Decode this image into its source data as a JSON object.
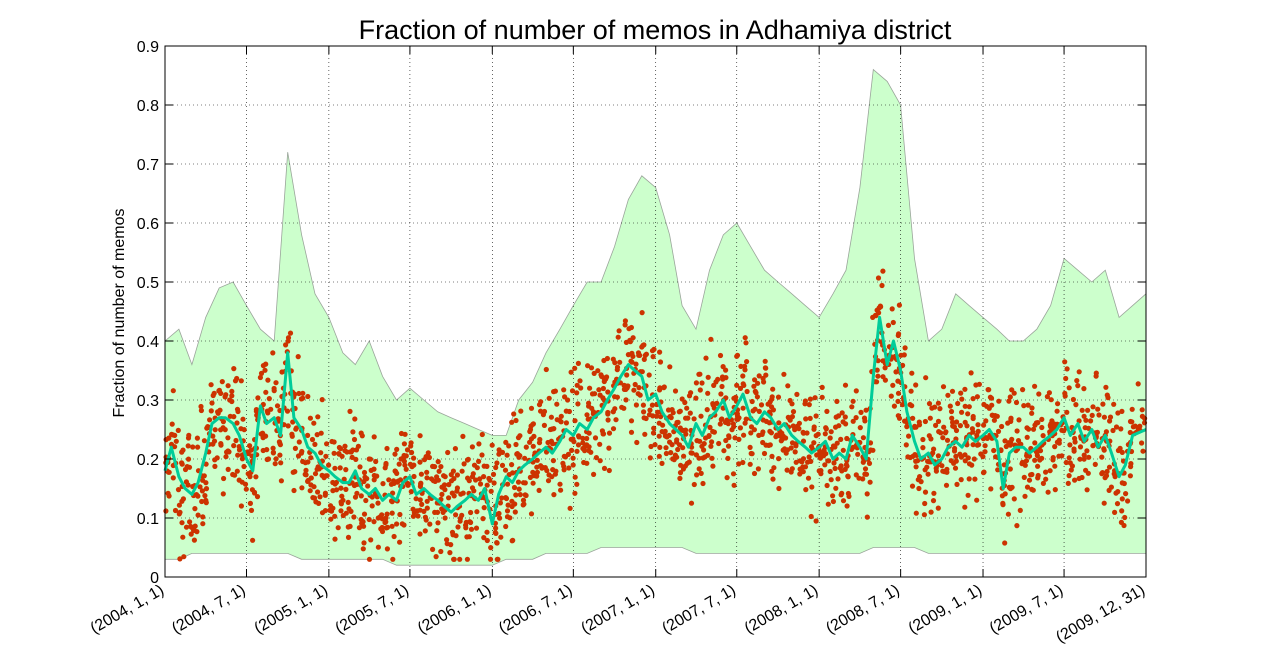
{
  "chart_data": {
    "type": "line",
    "title": "Fraction of number of memos in Adhamiya district",
    "xlabel": "",
    "ylabel": "Fraction of number of memos",
    "ylim": [
      0,
      0.9
    ],
    "xlim": [
      "2004-01-01",
      "2009-12-31"
    ],
    "yticks": [
      "0",
      "0.1",
      "0.2",
      "0.3",
      "0.4",
      "0.5",
      "0.6",
      "0.7",
      "0.8",
      "0.9"
    ],
    "xticks": [
      {
        "date": "2004-01-01",
        "label": "(2004, 1, 1)"
      },
      {
        "date": "2004-07-01",
        "label": "(2004, 7, 1)"
      },
      {
        "date": "2005-01-01",
        "label": "(2005, 1, 1)"
      },
      {
        "date": "2005-07-01",
        "label": "(2005, 7, 1)"
      },
      {
        "date": "2006-01-01",
        "label": "(2006, 1, 1)"
      },
      {
        "date": "2006-07-01",
        "label": "(2006, 7, 1)"
      },
      {
        "date": "2007-01-01",
        "label": "(2007, 1, 1)"
      },
      {
        "date": "2007-07-01",
        "label": "(2007, 7, 1)"
      },
      {
        "date": "2008-01-01",
        "label": "(2008, 1, 1)"
      },
      {
        "date": "2008-07-01",
        "label": "(2008, 7, 1)"
      },
      {
        "date": "2009-01-01",
        "label": "(2009, 1, 1)"
      },
      {
        "date": "2009-07-01",
        "label": "(2009, 7, 1)"
      },
      {
        "date": "2009-12-31",
        "label": "(2009, 12, 31)"
      }
    ],
    "grid": true,
    "legend": "none",
    "colors": {
      "band": "#ccffcc",
      "band_edge": "#9aa59a",
      "line": "#00cc99",
      "points": "#cc3300",
      "outliers": "#ff0000"
    },
    "band": {
      "x": [
        "2004-01-01",
        "2004-02-01",
        "2004-03-01",
        "2004-04-01",
        "2004-05-01",
        "2004-06-01",
        "2004-07-01",
        "2004-08-01",
        "2004-09-01",
        "2004-10-01",
        "2004-11-01",
        "2004-12-01",
        "2005-01-01",
        "2005-02-01",
        "2005-03-01",
        "2005-04-01",
        "2005-05-01",
        "2005-06-01",
        "2005-07-01",
        "2005-08-01",
        "2005-09-01",
        "2005-10-01",
        "2005-11-01",
        "2005-12-01",
        "2006-01-01",
        "2006-02-01",
        "2006-03-01",
        "2006-04-01",
        "2006-05-01",
        "2006-06-01",
        "2006-07-01",
        "2006-08-01",
        "2006-09-01",
        "2006-10-01",
        "2006-11-01",
        "2006-12-01",
        "2007-01-01",
        "2007-02-01",
        "2007-03-01",
        "2007-04-01",
        "2007-05-01",
        "2007-06-01",
        "2007-07-01",
        "2007-08-01",
        "2007-09-01",
        "2007-10-01",
        "2007-11-01",
        "2007-12-01",
        "2008-01-01",
        "2008-02-01",
        "2008-03-01",
        "2008-04-01",
        "2008-05-01",
        "2008-06-01",
        "2008-07-01",
        "2008-08-01",
        "2008-09-01",
        "2008-10-01",
        "2008-11-01",
        "2008-12-01",
        "2009-01-01",
        "2009-02-01",
        "2009-03-01",
        "2009-04-01",
        "2009-05-01",
        "2009-06-01",
        "2009-07-01",
        "2009-08-01",
        "2009-09-01",
        "2009-10-01",
        "2009-11-01",
        "2009-12-31"
      ],
      "upper": [
        0.4,
        0.42,
        0.36,
        0.44,
        0.49,
        0.5,
        0.46,
        0.42,
        0.4,
        0.72,
        0.58,
        0.48,
        0.44,
        0.38,
        0.36,
        0.4,
        0.34,
        0.3,
        0.32,
        0.3,
        0.28,
        0.27,
        0.26,
        0.25,
        0.24,
        0.24,
        0.3,
        0.33,
        0.38,
        0.42,
        0.46,
        0.5,
        0.5,
        0.56,
        0.64,
        0.68,
        0.66,
        0.58,
        0.46,
        0.42,
        0.52,
        0.58,
        0.6,
        0.56,
        0.52,
        0.5,
        0.48,
        0.46,
        0.44,
        0.48,
        0.52,
        0.66,
        0.86,
        0.84,
        0.8,
        0.54,
        0.4,
        0.42,
        0.48,
        0.46,
        0.44,
        0.42,
        0.4,
        0.4,
        0.42,
        0.46,
        0.54,
        0.52,
        0.5,
        0.52,
        0.44,
        0.48
      ],
      "lower": [
        0.03,
        0.03,
        0.04,
        0.04,
        0.04,
        0.04,
        0.04,
        0.04,
        0.04,
        0.04,
        0.03,
        0.03,
        0.03,
        0.03,
        0.03,
        0.03,
        0.03,
        0.02,
        0.02,
        0.02,
        0.02,
        0.02,
        0.02,
        0.02,
        0.02,
        0.03,
        0.03,
        0.03,
        0.04,
        0.04,
        0.04,
        0.04,
        0.05,
        0.05,
        0.05,
        0.05,
        0.05,
        0.05,
        0.05,
        0.04,
        0.04,
        0.04,
        0.04,
        0.04,
        0.04,
        0.04,
        0.04,
        0.04,
        0.04,
        0.04,
        0.04,
        0.04,
        0.05,
        0.05,
        0.05,
        0.05,
        0.04,
        0.04,
        0.04,
        0.04,
        0.04,
        0.04,
        0.04,
        0.04,
        0.04,
        0.04,
        0.04,
        0.04,
        0.04,
        0.04,
        0.04,
        0.04
      ]
    },
    "series": [
      {
        "values_x": [
          "2004-01-01",
          "2004-01-15",
          "2004-02-01",
          "2004-02-15",
          "2004-03-01",
          "2004-03-15",
          "2004-04-01",
          "2004-04-15",
          "2004-05-01",
          "2004-05-15",
          "2004-06-01",
          "2004-06-15",
          "2004-07-01",
          "2004-07-15",
          "2004-08-01",
          "2004-08-15",
          "2004-09-01",
          "2004-09-15",
          "2004-10-01",
          "2004-10-15",
          "2004-11-01",
          "2004-11-15",
          "2004-12-01",
          "2004-12-15",
          "2005-01-01",
          "2005-01-15",
          "2005-02-01",
          "2005-02-15",
          "2005-03-01",
          "2005-03-15",
          "2005-04-01",
          "2005-04-15",
          "2005-05-01",
          "2005-05-15",
          "2005-06-01",
          "2005-06-15",
          "2005-07-01",
          "2005-07-15",
          "2005-08-01",
          "2005-08-15",
          "2005-09-01",
          "2005-09-15",
          "2005-10-01",
          "2005-10-15",
          "2005-11-01",
          "2005-11-15",
          "2005-12-01",
          "2005-12-15",
          "2006-01-01",
          "2006-01-15",
          "2006-02-01",
          "2006-02-15",
          "2006-03-01",
          "2006-03-15",
          "2006-04-01",
          "2006-04-15",
          "2006-05-01",
          "2006-05-15",
          "2006-06-01",
          "2006-06-15",
          "2006-07-01",
          "2006-07-15",
          "2006-08-01",
          "2006-08-15",
          "2006-09-01",
          "2006-09-15",
          "2006-10-01",
          "2006-10-15",
          "2006-11-01",
          "2006-11-15",
          "2006-12-01",
          "2006-12-15",
          "2007-01-01",
          "2007-01-15",
          "2007-02-01",
          "2007-02-15",
          "2007-03-01",
          "2007-03-15",
          "2007-04-01",
          "2007-04-15",
          "2007-05-01",
          "2007-05-15",
          "2007-06-01",
          "2007-06-15",
          "2007-07-01",
          "2007-07-15",
          "2007-08-01",
          "2007-08-15",
          "2007-09-01",
          "2007-09-15",
          "2007-10-01",
          "2007-10-15",
          "2007-11-01",
          "2007-11-15",
          "2007-12-01",
          "2007-12-15",
          "2008-01-01",
          "2008-01-15",
          "2008-02-01",
          "2008-02-15",
          "2008-03-01",
          "2008-03-15",
          "2008-04-01",
          "2008-04-15",
          "2008-05-01",
          "2008-05-15",
          "2008-06-01",
          "2008-06-15",
          "2008-07-01",
          "2008-07-15",
          "2008-08-01",
          "2008-08-15",
          "2008-09-01",
          "2008-09-15",
          "2008-10-01",
          "2008-10-15",
          "2008-11-01",
          "2008-11-15",
          "2008-12-01",
          "2008-12-15",
          "2009-01-01",
          "2009-01-15",
          "2009-02-01",
          "2009-02-15",
          "2009-03-01",
          "2009-03-15",
          "2009-04-01",
          "2009-04-15",
          "2009-05-01",
          "2009-05-15",
          "2009-06-01",
          "2009-06-15",
          "2009-07-01",
          "2009-07-15",
          "2009-08-01",
          "2009-08-15",
          "2009-09-01",
          "2009-09-15",
          "2009-10-01",
          "2009-10-15",
          "2009-11-01",
          "2009-11-15",
          "2009-12-01",
          "2009-12-31"
        ],
        "values": [
          0.18,
          0.22,
          0.17,
          0.15,
          0.14,
          0.16,
          0.21,
          0.26,
          0.27,
          0.27,
          0.26,
          0.24,
          0.2,
          0.18,
          0.29,
          0.26,
          0.27,
          0.24,
          0.38,
          0.27,
          0.25,
          0.22,
          0.21,
          0.19,
          0.18,
          0.17,
          0.16,
          0.16,
          0.18,
          0.15,
          0.14,
          0.15,
          0.13,
          0.14,
          0.13,
          0.16,
          0.17,
          0.14,
          0.15,
          0.14,
          0.13,
          0.12,
          0.11,
          0.12,
          0.13,
          0.14,
          0.13,
          0.15,
          0.09,
          0.14,
          0.17,
          0.16,
          0.18,
          0.19,
          0.2,
          0.21,
          0.22,
          0.21,
          0.23,
          0.25,
          0.24,
          0.26,
          0.25,
          0.27,
          0.28,
          0.3,
          0.32,
          0.34,
          0.36,
          0.35,
          0.34,
          0.3,
          0.31,
          0.28,
          0.26,
          0.25,
          0.24,
          0.22,
          0.26,
          0.24,
          0.27,
          0.28,
          0.3,
          0.27,
          0.29,
          0.31,
          0.27,
          0.26,
          0.28,
          0.27,
          0.25,
          0.26,
          0.24,
          0.23,
          0.22,
          0.21,
          0.22,
          0.23,
          0.2,
          0.21,
          0.2,
          0.24,
          0.22,
          0.2,
          0.34,
          0.44,
          0.36,
          0.4,
          0.35,
          0.28,
          0.23,
          0.2,
          0.21,
          0.19,
          0.2,
          0.22,
          0.23,
          0.22,
          0.24,
          0.23,
          0.24,
          0.25,
          0.23,
          0.15,
          0.21,
          0.22,
          0.22,
          0.21,
          0.22,
          0.23,
          0.24,
          0.25,
          0.27,
          0.24,
          0.26,
          0.23,
          0.25,
          0.22,
          0.24,
          0.21,
          0.17,
          0.19,
          0.24,
          0.25
        ],
        "points_note": "per-day observations scattered around line"
      }
    ]
  }
}
